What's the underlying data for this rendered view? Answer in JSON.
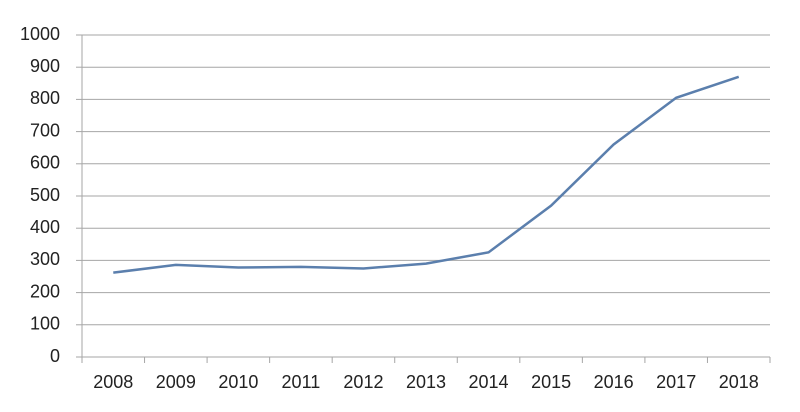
{
  "chart_data": {
    "type": "line",
    "categories": [
      "2008",
      "2009",
      "2010",
      "2011",
      "2012",
      "2013",
      "2014",
      "2015",
      "2016",
      "2017",
      "2018"
    ],
    "series": [
      {
        "color": "#5b7fad",
        "values": [
          262,
          286,
          278,
          280,
          275,
          290,
          325,
          470,
          660,
          805,
          870
        ]
      }
    ],
    "ylim": [
      0,
      1000
    ],
    "yticks": [
      0,
      100,
      200,
      300,
      400,
      500,
      600,
      700,
      800,
      900,
      1000
    ],
    "grid": true
  }
}
